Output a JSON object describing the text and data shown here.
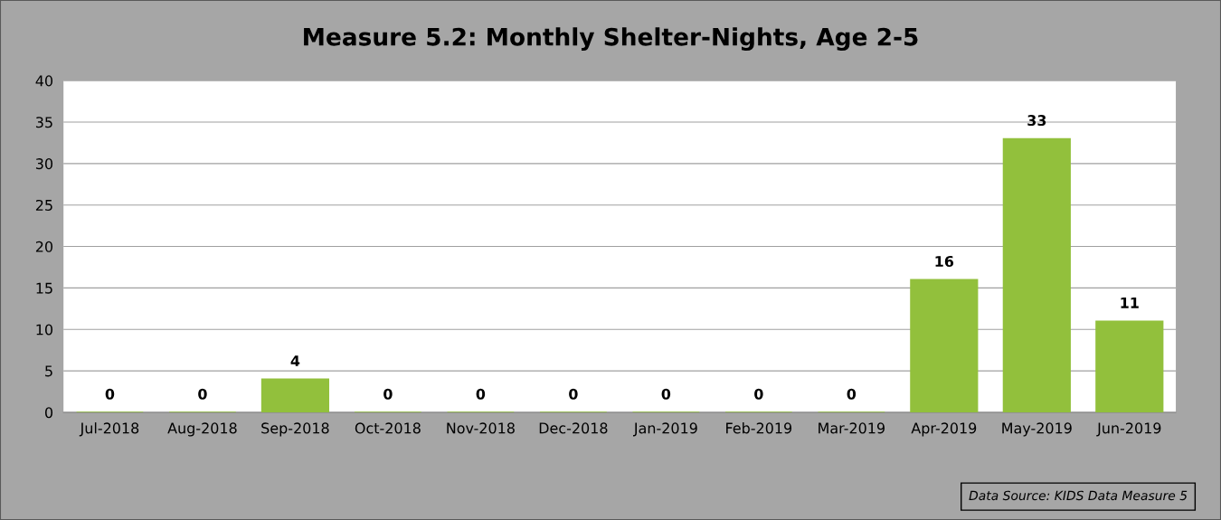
{
  "chart_data": {
    "type": "bar",
    "title": "Measure 5.2: Monthly Shelter-Nights, Age 2-5",
    "categories": [
      "Jul-2018",
      "Aug-2018",
      "Sep-2018",
      "Oct-2018",
      "Nov-2018",
      "Dec-2018",
      "Jan-2019",
      "Feb-2019",
      "Mar-2019",
      "Apr-2019",
      "May-2019",
      "Jun-2019"
    ],
    "values": [
      0,
      0,
      4,
      0,
      0,
      0,
      0,
      0,
      0,
      16,
      33,
      11
    ],
    "color": "#92c03c",
    "ylim": [
      0,
      40
    ],
    "yticks": [
      0,
      5,
      10,
      15,
      20,
      25,
      30,
      35,
      40
    ],
    "grid": "y",
    "data_labels": true,
    "annotations": [
      "Data Source: KIDS Data Measure 5"
    ]
  }
}
